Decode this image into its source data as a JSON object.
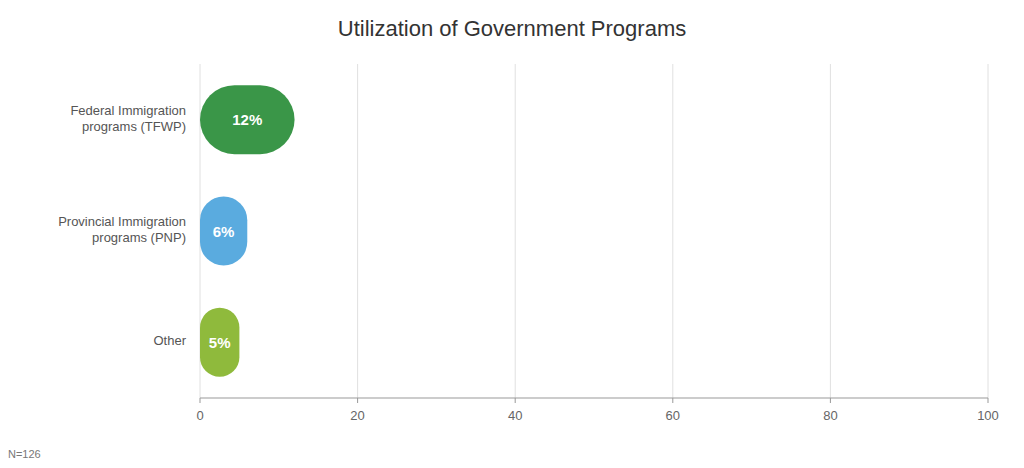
{
  "chart_data": {
    "type": "bar",
    "orientation": "horizontal",
    "title": "Utilization of Government Programs",
    "categories": [
      "Federal Immigration\nprograms (TFWP)",
      "Provincial Immigration\nprograms (PNP)",
      "Other"
    ],
    "values": [
      12,
      6,
      5
    ],
    "value_labels": [
      "12%",
      "6%",
      "5%"
    ],
    "data_labels": true,
    "colors": [
      "#3a9648",
      "#5aabdf",
      "#8fba3c"
    ],
    "xlim": [
      0,
      100
    ],
    "xticks": [
      0,
      20,
      40,
      60,
      80,
      100
    ],
    "grid": true,
    "annotation": "N=126"
  }
}
